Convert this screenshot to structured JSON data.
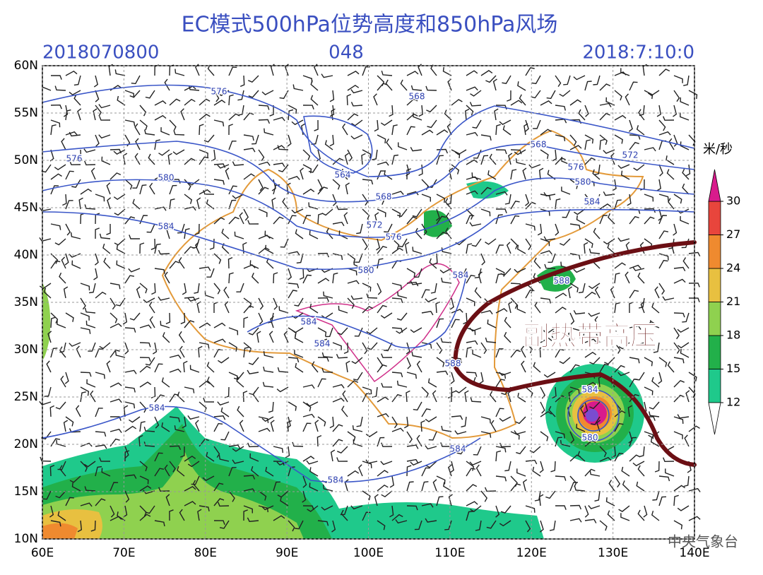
{
  "header": {
    "title": "EC模式500hPa位势高度和850hPa风场",
    "init_time": "2018070800",
    "forecast_hour": "048",
    "valid_time": "2018:7:10:0"
  },
  "map": {
    "lon_ticks": [
      {
        "value": 60,
        "label": "60E"
      },
      {
        "value": 70,
        "label": "70E"
      },
      {
        "value": 80,
        "label": "80E"
      },
      {
        "value": 90,
        "label": "90E"
      },
      {
        "value": 100,
        "label": "100E"
      },
      {
        "value": 110,
        "label": "110E"
      },
      {
        "value": 120,
        "label": "120E"
      },
      {
        "value": 130,
        "label": "130E"
      },
      {
        "value": 140,
        "label": "140E"
      }
    ],
    "lat_ticks": [
      {
        "value": 10,
        "label": "10N"
      },
      {
        "value": 15,
        "label": "15N"
      },
      {
        "value": 20,
        "label": "20N"
      },
      {
        "value": 25,
        "label": "25N"
      },
      {
        "value": 30,
        "label": "30N"
      },
      {
        "value": 35,
        "label": "35N"
      },
      {
        "value": 40,
        "label": "40N"
      },
      {
        "value": 45,
        "label": "45N"
      },
      {
        "value": 50,
        "label": "50N"
      },
      {
        "value": 55,
        "label": "55N"
      },
      {
        "value": 60,
        "label": "60N"
      }
    ],
    "contour_labels": [
      576,
      568,
      576,
      564,
      568,
      580,
      584,
      572,
      576,
      580,
      584,
      584,
      584,
      584,
      584,
      584,
      568,
      572,
      576,
      580,
      584,
      588,
      588,
      584,
      580
    ],
    "annotation": "副热带高压"
  },
  "colorbar": {
    "unit": "米/秒",
    "levels": [
      12,
      15,
      18,
      21,
      24,
      27,
      30
    ],
    "colors": [
      "#1fc98b",
      "#22b04a",
      "#8fd14f",
      "#e8c040",
      "#ef8a2f",
      "#e8453c"
    ],
    "over_color": "#d81b8c"
  },
  "watermark": "中央气象台"
}
